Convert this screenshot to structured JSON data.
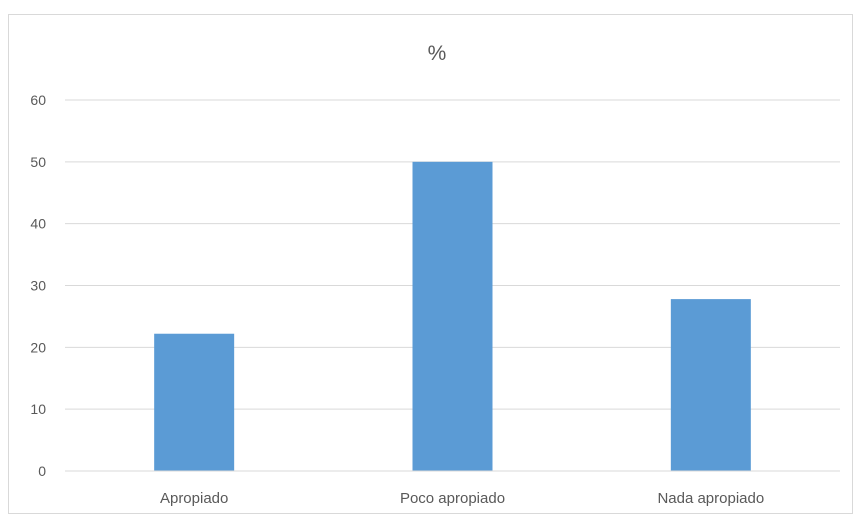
{
  "chart_data": {
    "type": "bar",
    "title": "%",
    "xlabel": "",
    "ylabel": "",
    "categories": [
      "Apropiado",
      "Poco apropiado",
      "Nada apropiado"
    ],
    "values": [
      22.2,
      50,
      27.8
    ],
    "ylim": [
      0,
      60
    ],
    "yticks": [
      0,
      10,
      20,
      30,
      40,
      50,
      60
    ],
    "grid": true,
    "legend": "none",
    "bar_color": "#5b9bd5"
  }
}
